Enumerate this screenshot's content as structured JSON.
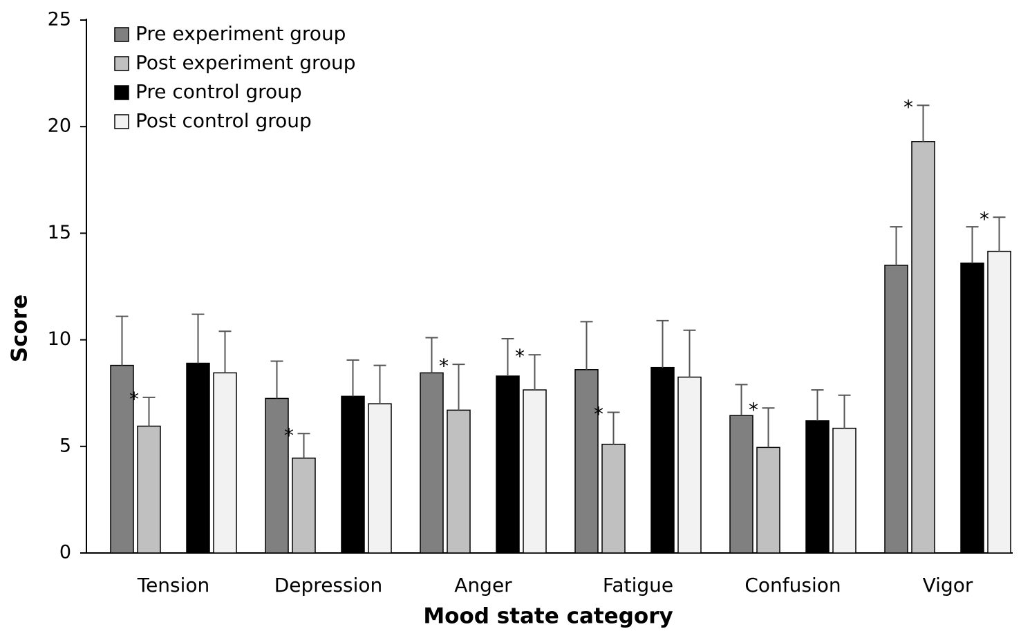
{
  "chart_data": {
    "type": "bar",
    "title": "",
    "xlabel": "Mood state category",
    "ylabel": "Score",
    "ylim": [
      0,
      25
    ],
    "yticks": [
      0,
      5,
      10,
      15,
      20,
      25
    ],
    "categories": [
      "Tension",
      "Depression",
      "Anger",
      "Fatigue",
      "Confusion",
      "Vigor"
    ],
    "series": [
      {
        "name": "Pre experiment group",
        "color": "#808080",
        "values": [
          8.8,
          7.25,
          8.45,
          8.6,
          6.45,
          13.5
        ],
        "errors": [
          2.3,
          1.75,
          1.65,
          2.25,
          1.45,
          1.8
        ],
        "significant": [
          false,
          false,
          false,
          false,
          false,
          false
        ]
      },
      {
        "name": "Post experiment group",
        "color": "#c0c0c0",
        "values": [
          5.95,
          4.45,
          6.7,
          5.1,
          4.95,
          19.3
        ],
        "errors": [
          1.35,
          1.15,
          2.15,
          1.5,
          1.85,
          1.7
        ],
        "significant": [
          true,
          true,
          true,
          true,
          true,
          true
        ]
      },
      {
        "name": "Pre control group",
        "color": "#000000",
        "values": [
          8.9,
          7.35,
          8.3,
          8.7,
          6.2,
          13.6
        ],
        "errors": [
          2.3,
          1.7,
          1.75,
          2.2,
          1.45,
          1.7
        ],
        "significant": [
          false,
          false,
          false,
          false,
          false,
          false
        ]
      },
      {
        "name": "Post control group",
        "color": "#f2f2f2",
        "values": [
          8.45,
          7.0,
          7.65,
          8.25,
          5.85,
          14.15
        ],
        "errors": [
          1.95,
          1.8,
          1.65,
          2.2,
          1.55,
          1.6
        ],
        "significant": [
          false,
          false,
          true,
          false,
          false,
          true
        ]
      }
    ],
    "annotation_marker": "*",
    "legend_position": "top-left",
    "grid": false
  }
}
